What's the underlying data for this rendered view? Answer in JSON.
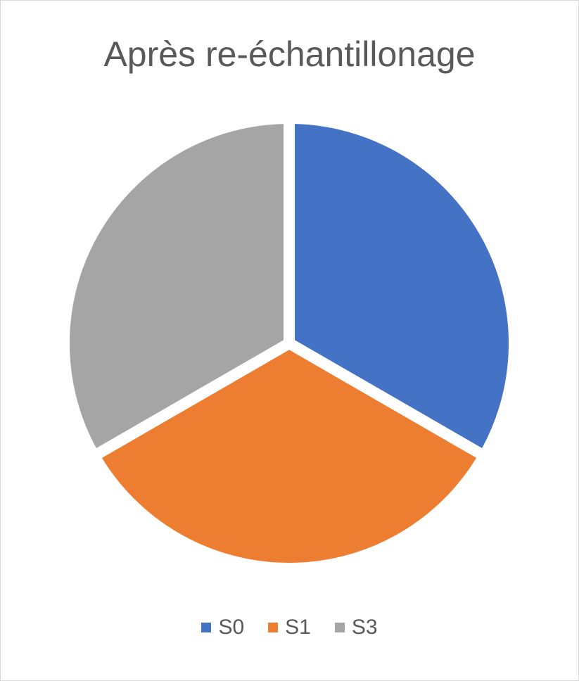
{
  "chart_data": {
    "type": "pie",
    "title": "Après re-échantillonage",
    "categories": [
      "S0",
      "S1",
      "S3"
    ],
    "values": [
      1,
      1,
      1
    ],
    "colors": [
      "#4472c4",
      "#ed7d31",
      "#a5a5a5"
    ],
    "legend_position": "bottom",
    "start_angle": "top, clockwise",
    "slice_separator_color": "#ffffff"
  }
}
